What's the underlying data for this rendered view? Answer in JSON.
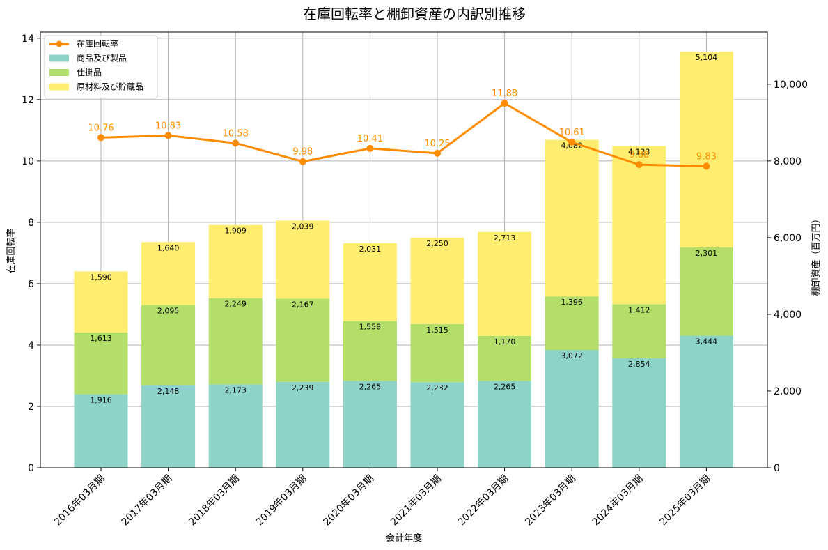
{
  "chart_data": {
    "type": "bar",
    "title": "在庫回転率と棚卸資産の内訳別推移",
    "xlabel": "会計年度",
    "ylabel_left": "在庫回転率",
    "ylabel_right": "棚卸資産（百万円）",
    "categories": [
      "2016年03月期",
      "2017年03月期",
      "2018年03月期",
      "2019年03月期",
      "2020年03月期",
      "2021年03月期",
      "2022年03月期",
      "2023年03月期",
      "2024年03月期",
      "2025年03月期"
    ],
    "ylim_left": [
      0,
      14.2
    ],
    "ylim_right": [
      0,
      11360
    ],
    "left_ticks": [
      "0",
      "2",
      "4",
      "6",
      "8",
      "10",
      "12",
      "14"
    ],
    "left_tick_values": [
      0,
      2,
      4,
      6,
      8,
      10,
      12,
      14
    ],
    "right_ticks": [
      "0",
      "2,000",
      "4,000",
      "6,000",
      "8,000",
      "10,000"
    ],
    "right_tick_values": [
      0,
      2000,
      4000,
      6000,
      8000,
      10000
    ],
    "grid": true,
    "legend_position": "top-left",
    "stacked_series": [
      {
        "name": "商品及び製品",
        "color": "#8dd3c7",
        "values": [
          1916,
          2148,
          2173,
          2239,
          2265,
          2232,
          2265,
          3072,
          2854,
          3444
        ],
        "labels": [
          "1,916",
          "2,148",
          "2,173",
          "2,239",
          "2,265",
          "2,232",
          "2,265",
          "3,072",
          "2,854",
          "3,444"
        ]
      },
      {
        "name": "仕掛品",
        "color": "#b3de69",
        "values": [
          1613,
          2095,
          2249,
          2167,
          1558,
          1515,
          1170,
          1396,
          1412,
          2301
        ],
        "labels": [
          "1,613",
          "2,095",
          "2,249",
          "2,167",
          "1,558",
          "1,515",
          "1,170",
          "1,396",
          "1,412",
          "2,301"
        ]
      },
      {
        "name": "原材料及び貯蔵品",
        "color": "#ffed6f",
        "values": [
          1590,
          1640,
          1909,
          2039,
          2031,
          2250,
          2713,
          4082,
          4123,
          5104
        ],
        "labels": [
          "1,590",
          "1,640",
          "1,909",
          "2,039",
          "2,031",
          "2,250",
          "2,713",
          "4,082",
          "4,123",
          "5,104"
        ]
      }
    ],
    "line_series": {
      "name": "在庫回転率",
      "color": "#ff8c00",
      "values": [
        10.76,
        10.83,
        10.58,
        9.98,
        10.41,
        10.25,
        11.88,
        10.61,
        9.88,
        9.83
      ],
      "labels": [
        "10.76",
        "10.83",
        "10.58",
        "9.98",
        "10.41",
        "10.25",
        "11.88",
        "10.61",
        "9.88",
        "9.83"
      ]
    }
  }
}
